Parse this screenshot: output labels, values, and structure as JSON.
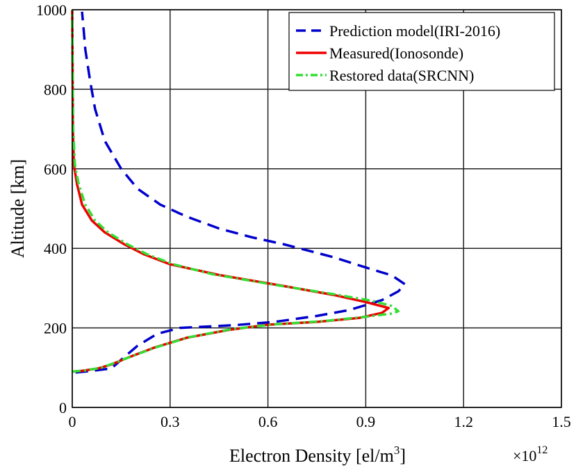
{
  "chart_data": {
    "type": "line",
    "title": "",
    "xlabel": "Electron Density [el/m",
    "xlabel_superscript": "3",
    "xlabel_suffix": "]",
    "ylabel": "Altitude [km]",
    "x_multiplier_base": "×10",
    "x_multiplier_exponent": "12",
    "xlim": [
      0,
      1.5
    ],
    "ylim": [
      0,
      1000
    ],
    "xticks": [
      0,
      0.3,
      0.6,
      0.9,
      1.2,
      1.5
    ],
    "xtick_labels": [
      "0",
      "0.3",
      "0.6",
      "0.9",
      "1.2",
      "1.5"
    ],
    "yticks": [
      0,
      200,
      400,
      600,
      800,
      1000
    ],
    "ytick_labels": [
      "0",
      "200",
      "400",
      "600",
      "800",
      "1000"
    ],
    "grid": true,
    "legend_position": "top-right",
    "series": [
      {
        "name": "Prediction model(IRI-2016)",
        "color": "#0000cc",
        "style": "dashed",
        "points": [
          [
            0.01,
            88
          ],
          [
            0.06,
            92
          ],
          [
            0.12,
            98
          ],
          [
            0.15,
            120
          ],
          [
            0.2,
            155
          ],
          [
            0.26,
            185
          ],
          [
            0.33,
            200
          ],
          [
            0.5,
            207
          ],
          [
            0.62,
            215
          ],
          [
            0.75,
            230
          ],
          [
            0.85,
            245
          ],
          [
            0.95,
            270
          ],
          [
            1.0,
            292
          ],
          [
            1.02,
            310
          ],
          [
            0.98,
            332
          ],
          [
            0.9,
            352
          ],
          [
            0.8,
            378
          ],
          [
            0.65,
            410
          ],
          [
            0.55,
            428
          ],
          [
            0.45,
            450
          ],
          [
            0.35,
            480
          ],
          [
            0.27,
            510
          ],
          [
            0.2,
            550
          ],
          [
            0.15,
            600
          ],
          [
            0.1,
            670
          ],
          [
            0.07,
            750
          ],
          [
            0.055,
            820
          ],
          [
            0.04,
            900
          ],
          [
            0.035,
            950
          ],
          [
            0.03,
            995
          ]
        ]
      },
      {
        "name": "Measured(Ionosonde)",
        "color": "#ee0000",
        "style": "solid",
        "points": [
          [
            0.0,
            90
          ],
          [
            0.03,
            92
          ],
          [
            0.08,
            98
          ],
          [
            0.12,
            108
          ],
          [
            0.17,
            125
          ],
          [
            0.25,
            150
          ],
          [
            0.35,
            175
          ],
          [
            0.48,
            195
          ],
          [
            0.6,
            208
          ],
          [
            0.75,
            215
          ],
          [
            0.88,
            225
          ],
          [
            0.95,
            238
          ],
          [
            0.97,
            250
          ],
          [
            0.9,
            265
          ],
          [
            0.8,
            283
          ],
          [
            0.65,
            305
          ],
          [
            0.45,
            333
          ],
          [
            0.3,
            360
          ],
          [
            0.22,
            385
          ],
          [
            0.16,
            410
          ],
          [
            0.1,
            440
          ],
          [
            0.06,
            470
          ],
          [
            0.03,
            510
          ],
          [
            0.015,
            560
          ],
          [
            0.005,
            610
          ],
          [
            0.002,
            700
          ],
          [
            0.001,
            850
          ],
          [
            0.0,
            1000
          ]
        ]
      },
      {
        "name": "Restored data(SRCNN)",
        "color": "#33dd33",
        "style": "dashdot",
        "points": [
          [
            0.0,
            90
          ],
          [
            0.04,
            93
          ],
          [
            0.09,
            100
          ],
          [
            0.13,
            112
          ],
          [
            0.18,
            128
          ],
          [
            0.26,
            152
          ],
          [
            0.36,
            177
          ],
          [
            0.49,
            197
          ],
          [
            0.62,
            209
          ],
          [
            0.77,
            217
          ],
          [
            0.9,
            228
          ],
          [
            0.98,
            236
          ],
          [
            1.0,
            242
          ],
          [
            0.98,
            255
          ],
          [
            0.92,
            268
          ],
          [
            0.8,
            285
          ],
          [
            0.63,
            307
          ],
          [
            0.43,
            335
          ],
          [
            0.31,
            360
          ],
          [
            0.23,
            385
          ],
          [
            0.17,
            410
          ],
          [
            0.11,
            440
          ],
          [
            0.07,
            470
          ],
          [
            0.04,
            510
          ],
          [
            0.02,
            560
          ],
          [
            0.008,
            610
          ],
          [
            0.003,
            700
          ],
          [
            0.001,
            850
          ],
          [
            0.0,
            1000
          ]
        ]
      }
    ]
  }
}
